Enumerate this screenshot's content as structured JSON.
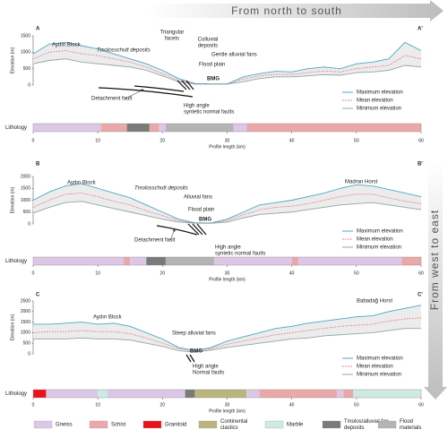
{
  "header": {
    "top_arrow": "From  north  to  south",
    "side_arrow": "From  west  to  east"
  },
  "chart_data": [
    {
      "type": "line",
      "annotations": [
        "A",
        "A'",
        "Aydın Block",
        "Tmolosschutt deposits",
        "Triangular",
        "facets",
        "Colluvial",
        "deposits",
        "Gentle alluvial fans",
        "Flood plain",
        "BMG",
        "Detachment fault",
        "High angle",
        "syntetic normal faults"
      ],
      "y_label": "Elevation (m)",
      "x_label": "Profile length (km)",
      "x": [
        0,
        2.5,
        5,
        7.5,
        10,
        12.5,
        15,
        17.5,
        20,
        22.5,
        25,
        27.5,
        30,
        32.5,
        35,
        37.5,
        40,
        42.5,
        45,
        47.5,
        50,
        52.5,
        55,
        57.5,
        60
      ],
      "xlim": [
        0,
        60
      ],
      "xticks": [
        0,
        10,
        20,
        30,
        40,
        50,
        60
      ],
      "ylim": [
        0,
        1500
      ],
      "yticks": [
        0,
        500,
        1000,
        1500
      ],
      "series": [
        {
          "name": "Maximum elevation",
          "color": "#4aa8c9",
          "dash": false,
          "values": [
            950,
            1250,
            1300,
            1200,
            1100,
            950,
            800,
            650,
            450,
            200,
            50,
            40,
            40,
            250,
            350,
            420,
            400,
            500,
            550,
            500,
            650,
            700,
            800,
            1300,
            1050
          ]
        },
        {
          "name": "Mean elevation",
          "color": "#e0607a",
          "dash": true,
          "values": [
            800,
            1000,
            1050,
            950,
            900,
            800,
            700,
            550,
            350,
            150,
            40,
            35,
            35,
            180,
            280,
            330,
            320,
            380,
            430,
            400,
            500,
            550,
            600,
            900,
            800
          ]
        },
        {
          "name": "Minimum elevation",
          "color": "#8fa8a0",
          "dash": false,
          "values": [
            650,
            750,
            800,
            700,
            650,
            600,
            550,
            450,
            280,
            100,
            30,
            30,
            30,
            100,
            200,
            250,
            250,
            280,
            320,
            300,
            380,
            400,
            450,
            600,
            550
          ]
        }
      ],
      "lithology": {
        "label": "Lithology",
        "segments": [
          {
            "from": 0,
            "to": 10.5,
            "unit": 0
          },
          {
            "from": 10.5,
            "to": 14.5,
            "unit": 1
          },
          {
            "from": 14.5,
            "to": 18,
            "unit": 5
          },
          {
            "from": 18,
            "to": 19.5,
            "unit": 1
          },
          {
            "from": 19.5,
            "to": 20.5,
            "unit": 0
          },
          {
            "from": 20.5,
            "to": 31,
            "unit": 6
          },
          {
            "from": 31,
            "to": 33,
            "unit": 0
          },
          {
            "from": 33,
            "to": 60,
            "unit": 1
          }
        ]
      }
    },
    {
      "type": "line",
      "annotations": [
        "B",
        "B'",
        "Aydın Block",
        "Tmolosschutt deposits",
        "Alluvial fans",
        "Flood plain",
        "BMG",
        "Madran Horst",
        "Detachment fault",
        "High angle",
        "syntetic normal faults"
      ],
      "y_label": "Elevation (m)",
      "x_label": "Profile length (km)",
      "x": [
        0,
        2.5,
        5,
        7.5,
        10,
        12.5,
        15,
        17.5,
        20,
        22.5,
        25,
        27.5,
        30,
        32.5,
        35,
        37.5,
        40,
        42.5,
        45,
        47.5,
        50,
        52.5,
        55,
        57.5,
        60
      ],
      "xlim": [
        0,
        60
      ],
      "xticks": [
        0,
        10,
        20,
        30,
        40,
        50,
        60
      ],
      "ylim": [
        0,
        2000
      ],
      "yticks": [
        0,
        500,
        1000,
        1500,
        2000
      ],
      "series": [
        {
          "name": "Maximum elevation",
          "color": "#4aa8c9",
          "dash": false,
          "values": [
            1000,
            1350,
            1600,
            1700,
            1500,
            1300,
            1100,
            800,
            500,
            200,
            50,
            40,
            200,
            500,
            800,
            900,
            1000,
            1150,
            1300,
            1500,
            1650,
            1600,
            1450,
            1300,
            1150
          ]
        },
        {
          "name": "Mean elevation",
          "color": "#e0607a",
          "dash": true,
          "values": [
            700,
            1000,
            1250,
            1300,
            1150,
            950,
            800,
            550,
            350,
            150,
            40,
            30,
            150,
            380,
            600,
            700,
            750,
            850,
            1000,
            1150,
            1250,
            1250,
            1100,
            950,
            850
          ]
        },
        {
          "name": "Minimum elevation",
          "color": "#8fa8a0",
          "dash": false,
          "values": [
            450,
            700,
            900,
            950,
            800,
            650,
            500,
            350,
            200,
            80,
            30,
            25,
            80,
            250,
            400,
            450,
            500,
            600,
            700,
            800,
            850,
            900,
            800,
            700,
            600
          ]
        }
      ],
      "lithology": {
        "label": "Lithology",
        "segments": [
          {
            "from": 0,
            "to": 14,
            "unit": 0
          },
          {
            "from": 14,
            "to": 15,
            "unit": 1
          },
          {
            "from": 15,
            "to": 17.5,
            "unit": 0
          },
          {
            "from": 17.5,
            "to": 20.5,
            "unit": 5
          },
          {
            "from": 20.5,
            "to": 28,
            "unit": 6
          },
          {
            "from": 28,
            "to": 40,
            "unit": 0
          },
          {
            "from": 40,
            "to": 41,
            "unit": 1
          },
          {
            "from": 41,
            "to": 57,
            "unit": 0
          },
          {
            "from": 57,
            "to": 60,
            "unit": 1
          }
        ]
      }
    },
    {
      "type": "line",
      "annotations": [
        "C",
        "C'",
        "Aydın Block",
        "Babadağ Horst",
        "Steep alluvial fans",
        "BMG",
        "High angle",
        "Normal faults"
      ],
      "y_label": "Elevation (m)",
      "x_label": "Profile length (km)",
      "x": [
        0,
        2.5,
        5,
        7.5,
        10,
        12.5,
        15,
        17.5,
        20,
        22.5,
        25,
        27.5,
        30,
        32.5,
        35,
        37.5,
        40,
        42.5,
        45,
        47.5,
        50,
        52.5,
        55,
        57.5,
        60
      ],
      "xlim": [
        0,
        60
      ],
      "xticks": [
        0,
        10,
        20,
        30,
        40,
        50,
        60
      ],
      "ylim": [
        0,
        2500
      ],
      "yticks": [
        0,
        500,
        1000,
        1500,
        2000,
        2500
      ],
      "series": [
        {
          "name": "Maximum elevation",
          "color": "#4aa8c9",
          "dash": false,
          "values": [
            1400,
            1400,
            1450,
            1500,
            1400,
            1450,
            1300,
            1000,
            700,
            300,
            150,
            300,
            600,
            800,
            1000,
            1200,
            1300,
            1450,
            1550,
            1650,
            1750,
            1800,
            2000,
            2150,
            2300
          ]
        },
        {
          "name": "Mean elevation",
          "color": "#e0607a",
          "dash": true,
          "values": [
            1000,
            1050,
            1050,
            1100,
            1050,
            1050,
            950,
            750,
            500,
            250,
            120,
            250,
            450,
            600,
            750,
            900,
            1000,
            1100,
            1200,
            1300,
            1350,
            1400,
            1550,
            1650,
            1700
          ]
        },
        {
          "name": "Minimum elevation",
          "color": "#8fa8a0",
          "dash": false,
          "values": [
            700,
            700,
            700,
            750,
            700,
            700,
            650,
            500,
            350,
            150,
            80,
            180,
            300,
            400,
            500,
            600,
            700,
            750,
            850,
            900,
            950,
            1000,
            1100,
            1200,
            1200
          ]
        }
      ],
      "lithology": {
        "label": "Lithology",
        "segments": [
          {
            "from": 0,
            "to": 2,
            "unit": 2
          },
          {
            "from": 2,
            "to": 10,
            "unit": 0
          },
          {
            "from": 10,
            "to": 11.5,
            "unit": 4
          },
          {
            "from": 11.5,
            "to": 23.5,
            "unit": 0
          },
          {
            "from": 23.5,
            "to": 25,
            "unit": 5
          },
          {
            "from": 25,
            "to": 33,
            "unit": 3
          },
          {
            "from": 33,
            "to": 35,
            "unit": 0
          },
          {
            "from": 35,
            "to": 47,
            "unit": 1
          },
          {
            "from": 47,
            "to": 48,
            "unit": 0
          },
          {
            "from": 48,
            "to": 49.5,
            "unit": 1
          },
          {
            "from": 49.5,
            "to": 60,
            "unit": 4
          }
        ]
      }
    }
  ],
  "lithology_legend": [
    {
      "name": [
        "Gneiss"
      ],
      "color": "#dcc8e6"
    },
    {
      "name": [
        "Schist"
      ],
      "color": "#eaa8a8"
    },
    {
      "name": [
        "Granitoid"
      ],
      "color": "#e8141c"
    },
    {
      "name": [
        "Continental",
        "clastics"
      ],
      "color": "#b9b57c"
    },
    {
      "name": [
        "Marble"
      ],
      "color": "#cfeae3"
    },
    {
      "name": [
        "Tmolos/alluvial fan",
        "deposits"
      ],
      "color": "#7a7a7a"
    },
    {
      "name": [
        "Flood",
        "materials"
      ],
      "color": "#b4b4b4"
    }
  ]
}
